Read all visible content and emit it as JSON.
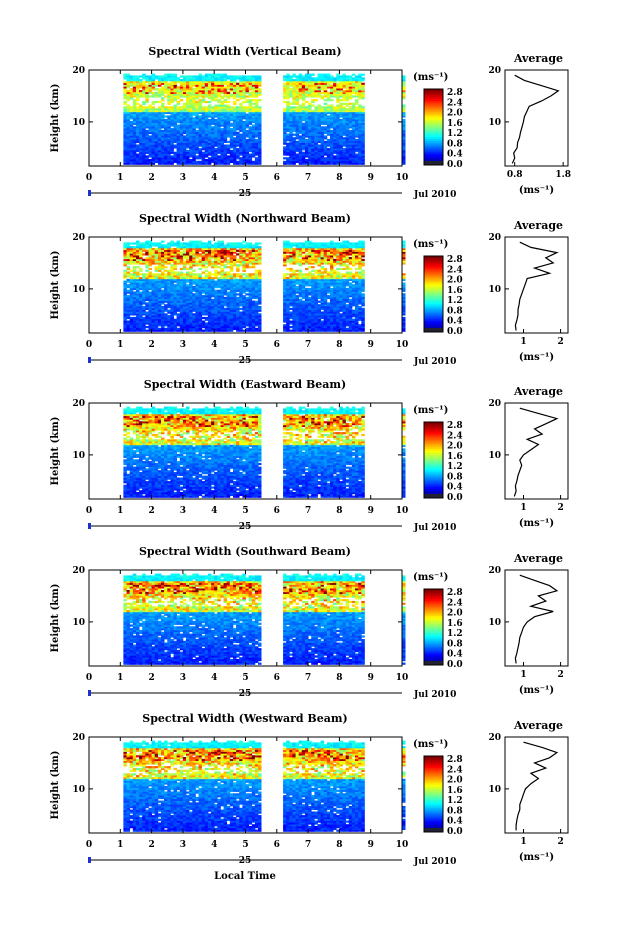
{
  "figure": {
    "x_axis_label": "Local Time",
    "date_label": "Jul 2010",
    "day_label": "25",
    "y_axis_label": "Height (km)",
    "colorbar_unit": "(ms⁻¹)",
    "average_title": "Average",
    "average_xlabel": "(ms⁻¹)"
  },
  "chart_data": [
    {
      "type": "heatmap",
      "title": "Spectral Width (Vertical Beam)",
      "xlabel": "Local Time",
      "ylabel": "Height (km)",
      "xlim": [
        0,
        10
      ],
      "x_ticks": [
        0,
        1,
        2,
        3,
        4,
        5,
        6,
        7,
        8,
        9,
        10
      ],
      "ylim": [
        1.5,
        20
      ],
      "y_ticks": [
        10,
        20
      ],
      "data_gaps_hours": [
        [
          0,
          1.1
        ],
        [
          5.5,
          6.2
        ],
        [
          8.8,
          10
        ]
      ],
      "colorbar": {
        "unit": "(ms⁻¹)",
        "ticks": [
          "2.8",
          "2.4",
          "2.0",
          "1.6",
          "1.2",
          "0.8",
          "0.4",
          "0.0"
        ],
        "range": [
          0,
          3.0
        ]
      },
      "average_profile": {
        "title": "Average",
        "xlabel": "(ms⁻¹)",
        "x_ticks": [
          "0.8",
          "1.8"
        ],
        "xlim": [
          0.6,
          1.9
        ],
        "height_km": [
          2,
          3,
          4,
          5,
          6,
          7,
          8,
          9,
          10,
          11,
          12,
          13,
          14,
          15,
          16,
          17,
          18,
          19
        ],
        "values": [
          0.75,
          0.8,
          0.78,
          0.85,
          0.86,
          0.9,
          0.92,
          0.95,
          0.98,
          1.0,
          1.05,
          1.1,
          1.35,
          1.55,
          1.7,
          1.35,
          1.0,
          0.8
        ]
      }
    },
    {
      "type": "heatmap",
      "title": "Spectral Width (Northward Beam)",
      "xlabel": "Local Time",
      "ylabel": "Height (km)",
      "xlim": [
        0,
        10
      ],
      "x_ticks": [
        0,
        1,
        2,
        3,
        4,
        5,
        6,
        7,
        8,
        9,
        10
      ],
      "ylim": [
        1.5,
        20
      ],
      "y_ticks": [
        10,
        20
      ],
      "data_gaps_hours": [
        [
          0,
          1.1
        ],
        [
          5.5,
          6.2
        ],
        [
          8.8,
          10
        ]
      ],
      "colorbar": {
        "unit": "(ms⁻¹)",
        "ticks": [
          "2.8",
          "2.4",
          "2.0",
          "1.6",
          "1.2",
          "0.8",
          "0.4",
          "0.0"
        ],
        "range": [
          0,
          3.0
        ]
      },
      "average_profile": {
        "title": "Average",
        "xlabel": "(ms⁻¹)",
        "x_ticks": [
          "1",
          "2"
        ],
        "xlim": [
          0.5,
          2.2
        ],
        "height_km": [
          2,
          3,
          4,
          5,
          6,
          7,
          8,
          9,
          10,
          11,
          12,
          13,
          14,
          15,
          16,
          17,
          18,
          19
        ],
        "values": [
          0.8,
          0.78,
          0.82,
          0.85,
          0.85,
          0.88,
          0.9,
          0.95,
          1.0,
          1.05,
          1.1,
          1.7,
          1.3,
          1.8,
          1.6,
          1.9,
          1.2,
          0.9
        ]
      }
    },
    {
      "type": "heatmap",
      "title": "Spectral Width (Eastward Beam)",
      "xlabel": "Local Time",
      "ylabel": "Height (km)",
      "xlim": [
        0,
        10
      ],
      "x_ticks": [
        0,
        1,
        2,
        3,
        4,
        5,
        6,
        7,
        8,
        9,
        10
      ],
      "ylim": [
        1.5,
        20
      ],
      "y_ticks": [
        10,
        20
      ],
      "data_gaps_hours": [
        [
          0,
          1.1
        ],
        [
          5.5,
          6.2
        ],
        [
          8.8,
          10
        ]
      ],
      "colorbar": {
        "unit": "(ms⁻¹)",
        "ticks": [
          "2.8",
          "2.4",
          "2.0",
          "1.6",
          "1.2",
          "0.8",
          "0.4",
          "0.0"
        ],
        "range": [
          0,
          3.0
        ]
      },
      "average_profile": {
        "title": "Average",
        "xlabel": "(ms⁻¹)",
        "x_ticks": [
          "1",
          "2"
        ],
        "xlim": [
          0.5,
          2.2
        ],
        "height_km": [
          2,
          3,
          4,
          5,
          6,
          7,
          8,
          9,
          10,
          11,
          12,
          13,
          14,
          15,
          16,
          17,
          18,
          19
        ],
        "values": [
          0.75,
          0.8,
          0.78,
          0.82,
          0.85,
          0.9,
          0.95,
          0.9,
          1.0,
          1.2,
          1.4,
          1.1,
          1.5,
          1.3,
          1.6,
          1.9,
          1.4,
          0.9
        ]
      }
    },
    {
      "type": "heatmap",
      "title": "Spectral Width (Southward Beam)",
      "xlabel": "Local Time",
      "ylabel": "Height (km)",
      "xlim": [
        0,
        10
      ],
      "x_ticks": [
        0,
        1,
        2,
        3,
        4,
        5,
        6,
        7,
        8,
        9,
        10
      ],
      "ylim": [
        1.5,
        20
      ],
      "y_ticks": [
        10,
        20
      ],
      "data_gaps_hours": [
        [
          0,
          1.1
        ],
        [
          5.5,
          6.2
        ],
        [
          8.8,
          10
        ]
      ],
      "colorbar": {
        "unit": "(ms⁻¹)",
        "ticks": [
          "2.8",
          "2.4",
          "2.0",
          "1.6",
          "1.2",
          "0.8",
          "0.4",
          "0.0"
        ],
        "range": [
          0,
          3.0
        ]
      },
      "average_profile": {
        "title": "Average",
        "xlabel": "(ms⁻¹)",
        "x_ticks": [
          "1",
          "2"
        ],
        "xlim": [
          0.5,
          2.2
        ],
        "height_km": [
          2,
          3,
          4,
          5,
          6,
          7,
          8,
          9,
          10,
          11,
          12,
          13,
          14,
          15,
          16,
          17,
          18,
          19
        ],
        "values": [
          0.8,
          0.78,
          0.82,
          0.85,
          0.88,
          0.9,
          0.95,
          1.0,
          1.1,
          1.3,
          1.8,
          1.2,
          1.6,
          1.4,
          1.9,
          1.7,
          1.3,
          0.9
        ]
      }
    },
    {
      "type": "heatmap",
      "title": "Spectral Width (Westward Beam)",
      "xlabel": "Local Time",
      "ylabel": "Height (km)",
      "xlim": [
        0,
        10
      ],
      "x_ticks": [
        0,
        1,
        2,
        3,
        4,
        5,
        6,
        7,
        8,
        9,
        10
      ],
      "ylim": [
        1.5,
        20
      ],
      "y_ticks": [
        10,
        20
      ],
      "data_gaps_hours": [
        [
          0,
          1.1
        ],
        [
          5.5,
          6.2
        ],
        [
          8.8,
          10
        ]
      ],
      "colorbar": {
        "unit": "(ms⁻¹)",
        "ticks": [
          "2.8",
          "2.4",
          "2.0",
          "1.6",
          "1.2",
          "0.8",
          "0.4",
          "0.0"
        ],
        "range": [
          0,
          3.0
        ]
      },
      "average_profile": {
        "title": "Average",
        "xlabel": "(ms⁻¹)",
        "x_ticks": [
          "1",
          "2"
        ],
        "xlim": [
          0.5,
          2.2
        ],
        "height_km": [
          2,
          3,
          4,
          5,
          6,
          7,
          8,
          9,
          10,
          11,
          12,
          13,
          14,
          15,
          16,
          17,
          18,
          19
        ],
        "values": [
          0.8,
          0.8,
          0.82,
          0.85,
          0.9,
          0.9,
          0.95,
          1.0,
          1.05,
          1.2,
          1.4,
          1.2,
          1.6,
          1.3,
          1.7,
          1.9,
          1.5,
          1.0
        ]
      }
    }
  ]
}
